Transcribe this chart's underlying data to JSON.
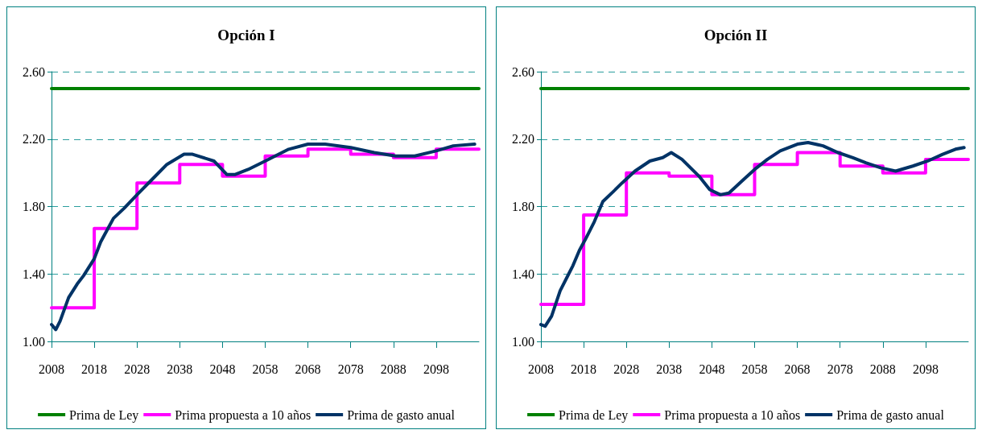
{
  "chart_data": [
    {
      "type": "line",
      "title": "Opción I",
      "xlim": [
        2008,
        2108
      ],
      "xticks": [
        2008,
        2018,
        2028,
        2038,
        2048,
        2058,
        2068,
        2078,
        2088,
        2098
      ],
      "ylim": [
        1.0,
        2.6
      ],
      "yticks": [
        {
          "value": 1.0,
          "label": "1.00"
        },
        {
          "value": 1.4,
          "label": "1.40"
        },
        {
          "value": 1.8,
          "label": "1.80"
        },
        {
          "value": 2.2,
          "label": "2.20"
        },
        {
          "value": 2.6,
          "label": "2.60"
        }
      ],
      "grid": "y",
      "legend": "bottom",
      "marker": "none",
      "line_style": "solid",
      "series": [
        {
          "name": "Prima de Ley",
          "type": "line",
          "color": "#008000",
          "x": [
            2008,
            2108
          ],
          "values": [
            2.5,
            2.5
          ]
        },
        {
          "name": "Prima propuesta a 10 años",
          "type": "step",
          "color": "#ff00ff",
          "x": [
            2008,
            2018,
            2028,
            2038,
            2048,
            2058,
            2068,
            2078,
            2088,
            2098,
            2108
          ],
          "values": [
            1.2,
            1.67,
            1.94,
            2.05,
            1.98,
            2.1,
            2.14,
            2.11,
            2.09,
            2.14,
            2.14
          ]
        },
        {
          "name": "Prima de gasto anual",
          "type": "line",
          "color": "#003366",
          "x": [
            2008,
            2009,
            2010,
            2012,
            2014,
            2015.5,
            2018,
            2019.5,
            2021,
            2022.5,
            2025,
            2028,
            2031.5,
            2035,
            2039,
            2041,
            2046,
            2049,
            2051,
            2054,
            2058,
            2063.5,
            2068,
            2072,
            2078,
            2083.5,
            2088.5,
            2093,
            2098,
            2102,
            2107
          ],
          "values": [
            1.1,
            1.07,
            1.12,
            1.26,
            1.34,
            1.39,
            1.49,
            1.59,
            1.66,
            1.73,
            1.79,
            1.87,
            1.96,
            2.05,
            2.11,
            2.11,
            2.07,
            1.99,
            1.99,
            2.02,
            2.07,
            2.14,
            2.17,
            2.17,
            2.15,
            2.12,
            2.1,
            2.1,
            2.13,
            2.16,
            2.17
          ]
        }
      ]
    },
    {
      "type": "line",
      "title": "Opción II",
      "xlim": [
        2008,
        2108
      ],
      "xticks": [
        2008,
        2018,
        2028,
        2038,
        2048,
        2058,
        2068,
        2078,
        2088,
        2098
      ],
      "ylim": [
        1.0,
        2.6
      ],
      "yticks": [
        {
          "value": 1.0,
          "label": "1.00"
        },
        {
          "value": 1.4,
          "label": "1.40"
        },
        {
          "value": 1.8,
          "label": "1.80"
        },
        {
          "value": 2.2,
          "label": "2.20"
        },
        {
          "value": 2.6,
          "label": "2.60"
        }
      ],
      "grid": "y",
      "legend": "bottom",
      "marker": "none",
      "line_style": "solid",
      "series": [
        {
          "name": "Prima de Ley",
          "type": "line",
          "color": "#008000",
          "x": [
            2008,
            2108
          ],
          "values": [
            2.5,
            2.5
          ]
        },
        {
          "name": "Prima propuesta a 10 años",
          "type": "step",
          "color": "#ff00ff",
          "x": [
            2008,
            2018,
            2028,
            2038,
            2048,
            2058,
            2068,
            2078,
            2088,
            2098,
            2108
          ],
          "values": [
            1.22,
            1.75,
            2.0,
            1.98,
            1.87,
            2.05,
            2.12,
            2.04,
            2.0,
            2.08,
            2.08
          ]
        },
        {
          "name": "Prima de gasto anual",
          "type": "line",
          "color": "#003366",
          "x": [
            2008,
            2009,
            2010.5,
            2012.5,
            2014.5,
            2015.5,
            2017,
            2018.5,
            2020.5,
            2022.5,
            2025,
            2027,
            2030,
            2033.5,
            2036.5,
            2038.5,
            2041,
            2045,
            2047.5,
            2050,
            2052,
            2055,
            2058,
            2061,
            2064,
            2068,
            2070.5,
            2074,
            2077.5,
            2081,
            2084,
            2087.5,
            2091,
            2095,
            2098.5,
            2102,
            2105,
            2107
          ],
          "values": [
            1.1,
            1.09,
            1.15,
            1.3,
            1.4,
            1.45,
            1.54,
            1.61,
            1.71,
            1.83,
            1.89,
            1.94,
            2.01,
            2.07,
            2.09,
            2.12,
            2.08,
            1.98,
            1.9,
            1.87,
            1.88,
            1.95,
            2.02,
            2.08,
            2.13,
            2.17,
            2.18,
            2.16,
            2.12,
            2.09,
            2.06,
            2.03,
            2.01,
            2.04,
            2.07,
            2.11,
            2.14,
            2.15
          ]
        }
      ]
    }
  ]
}
